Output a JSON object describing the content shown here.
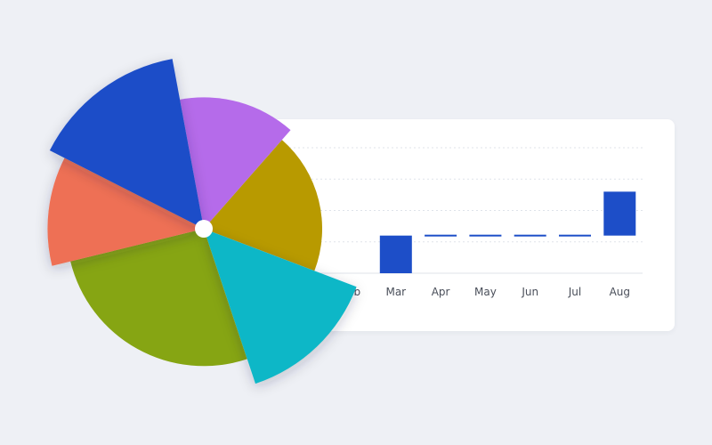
{
  "colors": {
    "background": "#eef0f5",
    "card": "#ffffff",
    "bar": "#1d4ec8",
    "grid": "#dfe3ea",
    "tick_text": "#4a4f5a",
    "center_dot": "#ffffff"
  },
  "chart_data": [
    {
      "type": "bar",
      "subtype": "waterfall",
      "categories": [
        "Feb",
        "Mar",
        "Apr",
        "May",
        "Jun",
        "Jul",
        "Aug"
      ],
      "values": [
        null,
        12,
        0,
        0,
        0,
        0,
        14
      ],
      "cumulative_end": [
        0,
        12,
        12,
        12,
        12,
        12,
        26
      ],
      "ylim": [
        0,
        40
      ],
      "grid": "horizontal dotted",
      "axis_labels": "none",
      "title": "",
      "xlabel": "",
      "ylabel": ""
    },
    {
      "type": "pie",
      "subtype": "polar-area (exploded sectors)",
      "slices": [
        {
          "value": 14.4,
          "relative_radius": 1.11,
          "color": "#b56bea",
          "icon": "purple-sector"
        },
        {
          "value": 19.3,
          "relative_radius": 1.0,
          "color": "#b89a00",
          "icon": "gold-sector"
        },
        {
          "value": 14.1,
          "relative_radius": 1.38,
          "color": "#0cb7c7",
          "icon": "cyan-sector"
        },
        {
          "value": 26.3,
          "relative_radius": 1.16,
          "color": "#86a513",
          "icon": "olive-sector"
        },
        {
          "value": 11.3,
          "relative_radius": 1.32,
          "color": "#ee7055",
          "icon": "coral-sector"
        },
        {
          "value": 14.6,
          "relative_radius": 1.46,
          "color": "#1d4ec8",
          "icon": "blue-sector"
        }
      ],
      "legend": "none",
      "title": ""
    }
  ]
}
